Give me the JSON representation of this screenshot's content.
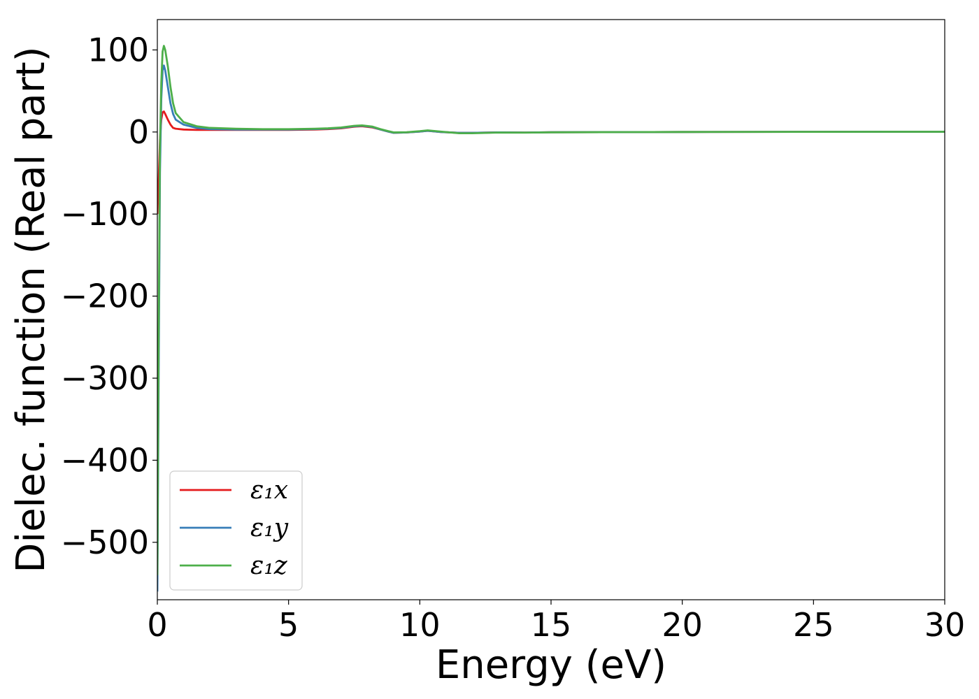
{
  "chart_data": {
    "type": "line",
    "xlabel": "Energy (eV)",
    "ylabel": "Dielec. function (Real part)",
    "xlim": [
      0,
      30
    ],
    "ylim": [
      -570,
      137
    ],
    "x_ticks": [
      0,
      5,
      10,
      15,
      20,
      25,
      30
    ],
    "x_tick_labels": [
      "0",
      "5",
      "10",
      "15",
      "20",
      "25",
      "30"
    ],
    "y_ticks": [
      100,
      0,
      -100,
      -200,
      -300,
      -400,
      -500
    ],
    "y_tick_labels": [
      "100",
      "0",
      "−100",
      "−200",
      "−300",
      "−400",
      "−500"
    ],
    "grid": false,
    "legend_position": "lower-left",
    "series": [
      {
        "name": "ε₁x",
        "color": "#e41a1c",
        "x": [
          0,
          0.05,
          0.1,
          0.15,
          0.2,
          0.25,
          0.3,
          0.4,
          0.5,
          0.6,
          0.7,
          1.0,
          1.5,
          2.0,
          3,
          4,
          5,
          6,
          6.5,
          7,
          7.5,
          7.8,
          8.2,
          8.5,
          8.8,
          9.0,
          9.5,
          10,
          10.3,
          10.8,
          11.5,
          12,
          13,
          14,
          15,
          17,
          20,
          25,
          30
        ],
        "y": [
          -100,
          -60,
          -10,
          15,
          24,
          25,
          22,
          15,
          9,
          5,
          4,
          3,
          2.5,
          2.5,
          2.5,
          2.5,
          2.5,
          3,
          3.5,
          4.5,
          6.5,
          7,
          5.5,
          3,
          0.5,
          -1,
          -0.5,
          0.5,
          1.5,
          0,
          -1,
          -1,
          -0.5,
          -0.7,
          -0.3,
          -0.2,
          0,
          0.2,
          0.3
        ]
      },
      {
        "name": "ε₁y",
        "color": "#377eb8",
        "x": [
          0,
          0.05,
          0.1,
          0.15,
          0.2,
          0.25,
          0.3,
          0.4,
          0.5,
          0.6,
          0.7,
          1.0,
          1.5,
          2.0,
          3,
          4,
          5,
          6,
          6.5,
          7,
          7.5,
          7.8,
          8.2,
          8.5,
          8.8,
          9.0,
          9.5,
          10,
          10.3,
          10.8,
          11.5,
          12,
          13,
          14,
          15,
          17,
          20,
          25,
          30
        ],
        "y": [
          -560,
          -300,
          -50,
          40,
          75,
          81,
          75,
          55,
          35,
          22,
          15,
          9,
          5,
          3.5,
          3,
          3,
          3,
          3.5,
          4,
          5,
          7,
          7.5,
          6,
          3,
          0.5,
          -1,
          -0.5,
          0.5,
          1.5,
          0,
          -1,
          -1,
          -0.5,
          -0.7,
          -0.3,
          -0.2,
          0,
          0.2,
          0.3
        ]
      },
      {
        "name": "ε₁z",
        "color": "#4daf4a",
        "x": [
          0,
          0.05,
          0.1,
          0.15,
          0.2,
          0.25,
          0.3,
          0.4,
          0.5,
          0.6,
          0.7,
          1.0,
          1.5,
          2.0,
          3,
          4,
          5,
          6,
          6.5,
          7,
          7.5,
          7.8,
          8.2,
          8.5,
          8.8,
          9.0,
          9.5,
          10,
          10.3,
          10.8,
          11.5,
          12,
          13,
          14,
          15,
          17,
          20,
          25,
          30
        ],
        "y": [
          -540,
          -250,
          -20,
          60,
          98,
          105,
          100,
          80,
          55,
          35,
          23,
          12,
          7,
          5,
          4,
          3.5,
          3.5,
          4,
          4.5,
          5.5,
          7.5,
          8,
          6.5,
          3.5,
          1,
          -0.5,
          -0.3,
          1,
          2,
          0.5,
          -1.5,
          -1.5,
          -0.7,
          -0.8,
          -0.4,
          -0.2,
          0,
          0.2,
          0.3
        ]
      }
    ]
  }
}
